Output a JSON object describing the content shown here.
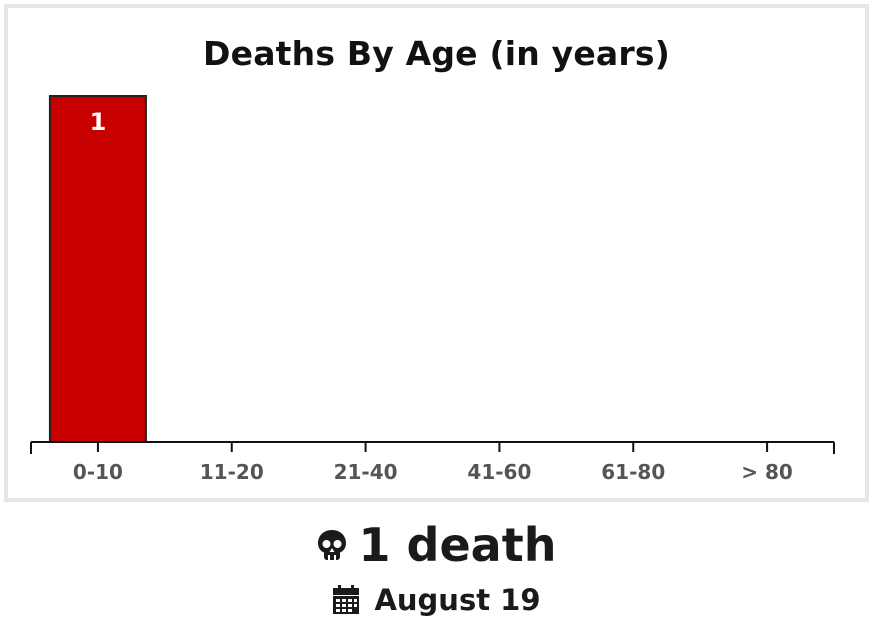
{
  "chart_data": {
    "type": "bar",
    "title": "Deaths By Age (in years)",
    "categories": [
      "0-10",
      "11-20",
      "21-40",
      "41-60",
      "61-80",
      "> 80"
    ],
    "values": [
      1,
      0,
      0,
      0,
      0,
      0
    ],
    "ylim": [
      0,
      1
    ],
    "grid": false,
    "bar_color": "#c80000",
    "bar_outline": "#222222"
  },
  "summary": {
    "count_icon": "skull-icon",
    "count_text": "1 death",
    "date_icon": "calendar-icon",
    "date_text": "August 19"
  }
}
